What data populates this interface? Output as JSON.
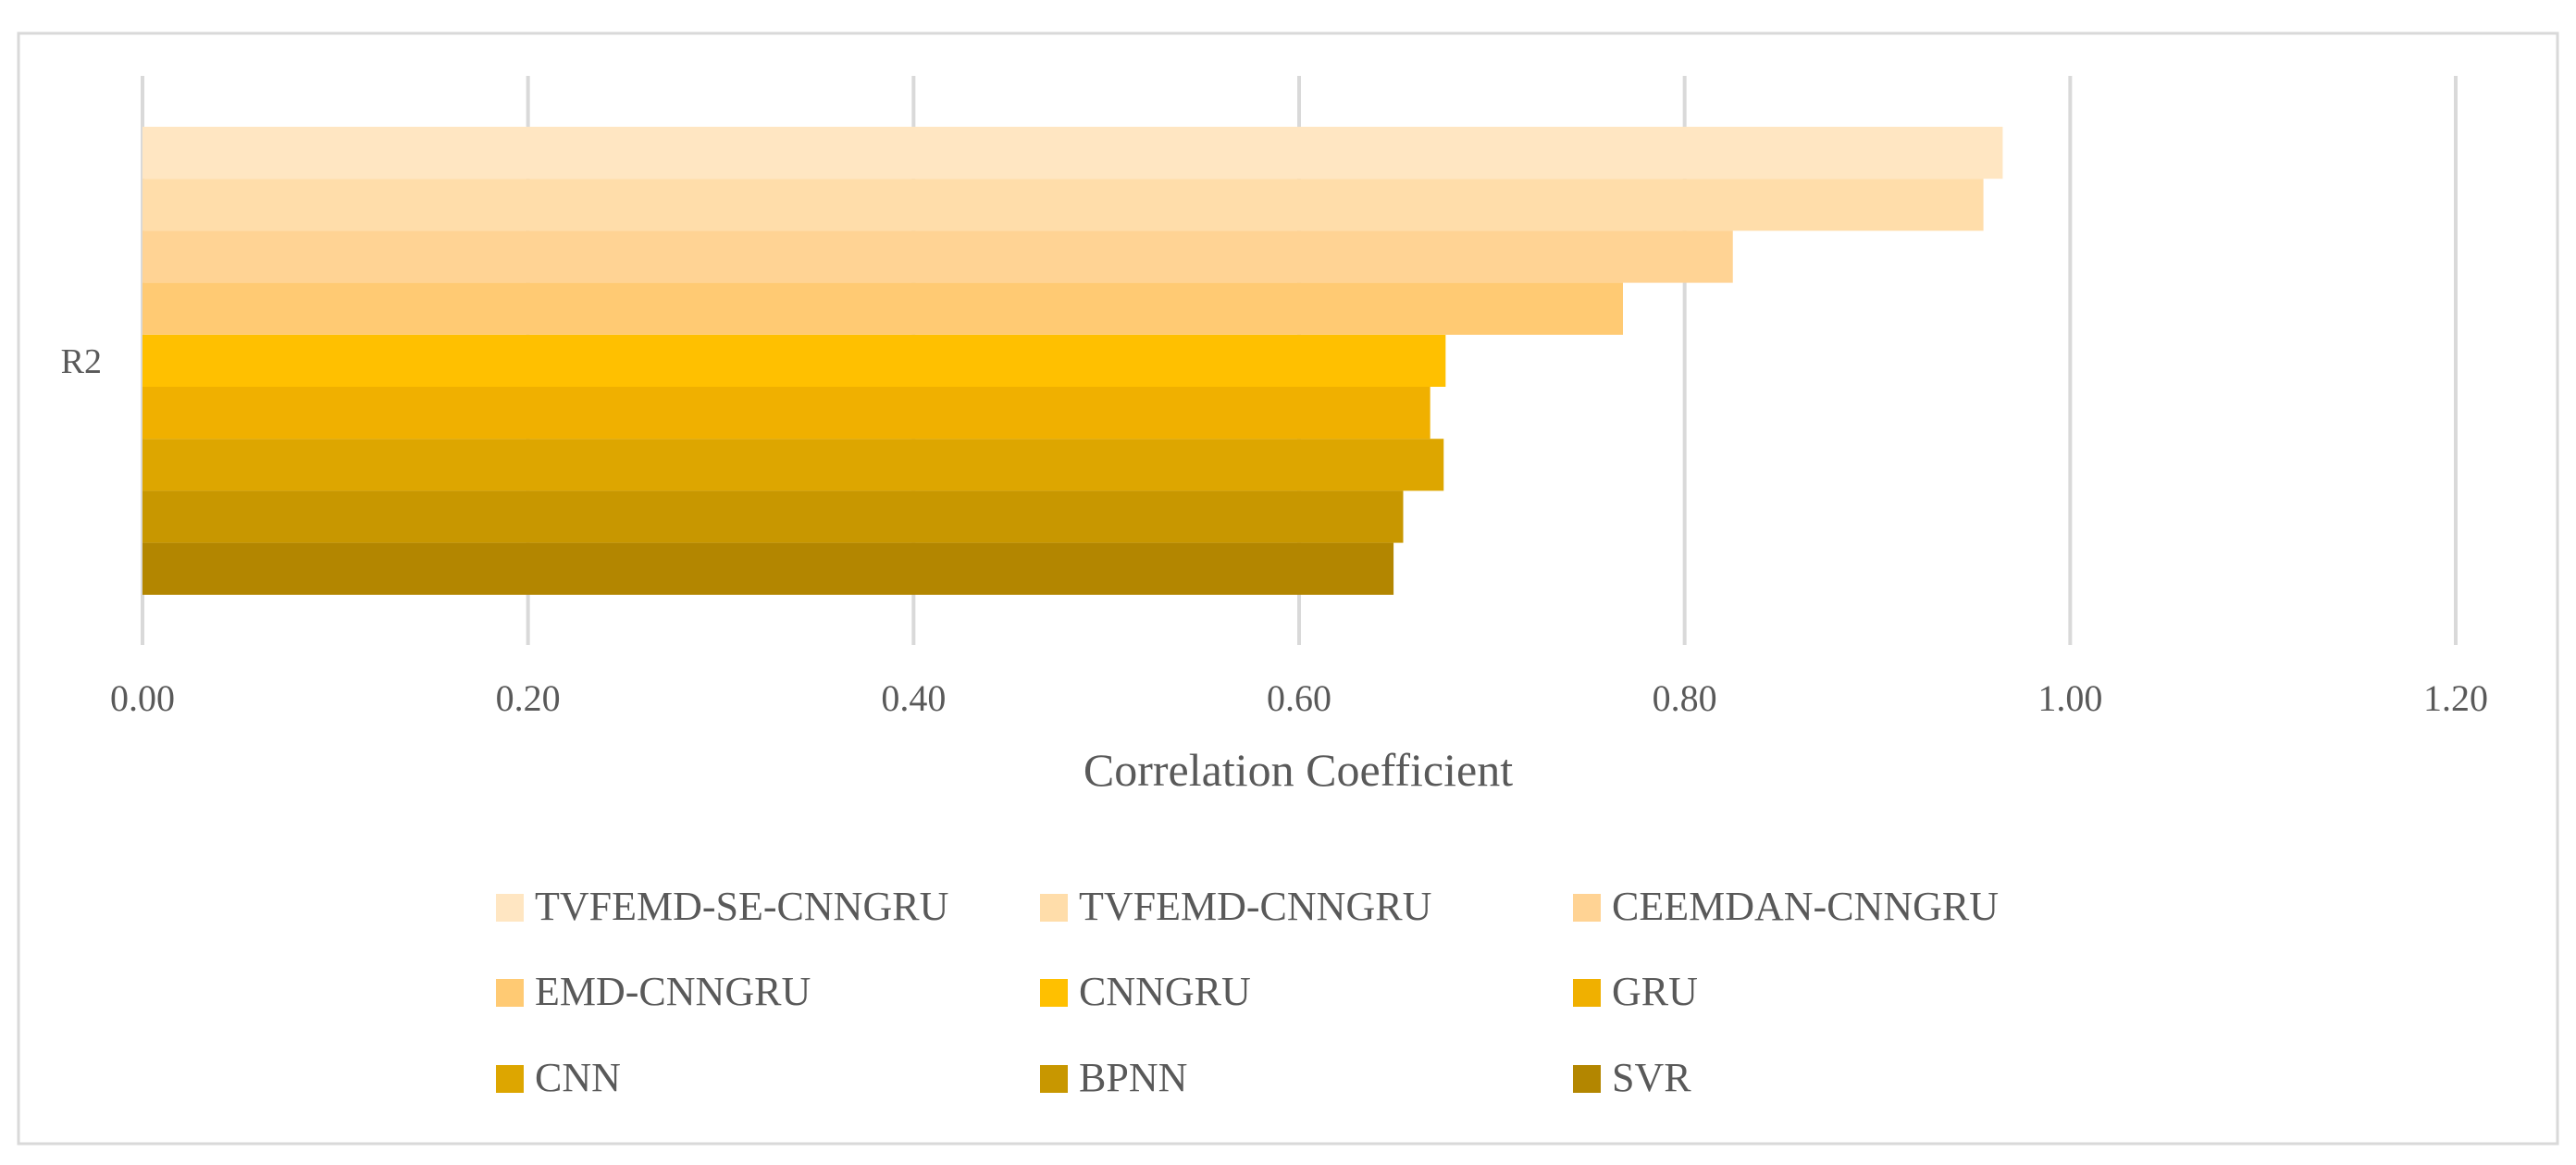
{
  "chart_data": {
    "type": "bar",
    "orientation": "horizontal",
    "categories": [
      "R2"
    ],
    "series": [
      {
        "name": "TVFEMD-SE-CNNGRU",
        "values": [
          0.965
        ],
        "color": "#FFE6C2"
      },
      {
        "name": "TVFEMD-CNNGRU",
        "values": [
          0.955
        ],
        "color": "#FFDDAA"
      },
      {
        "name": "CEEMDAN-CNNGRU",
        "values": [
          0.825
        ],
        "color": "#FFD394"
      },
      {
        "name": "EMD-CNNGRU",
        "values": [
          0.768
        ],
        "color": "#FFCA73"
      },
      {
        "name": "CNNGRU",
        "values": [
          0.676
        ],
        "color": "#FFC000"
      },
      {
        "name": "GRU",
        "values": [
          0.668
        ],
        "color": "#F0B000"
      },
      {
        "name": "CNN",
        "values": [
          0.675
        ],
        "color": "#DDA600"
      },
      {
        "name": "BPNN",
        "values": [
          0.654
        ],
        "color": "#C89700"
      },
      {
        "name": "SVR",
        "values": [
          0.649
        ],
        "color": "#B38600"
      }
    ],
    "xlabel": "Correlation Coefficient",
    "ylabel": "",
    "xlim": [
      0,
      1.2
    ],
    "x_ticks": [
      "0.00",
      "0.20",
      "0.40",
      "0.60",
      "0.80",
      "1.00",
      "1.20"
    ],
    "grid": "vertical",
    "legend_position": "bottom"
  }
}
